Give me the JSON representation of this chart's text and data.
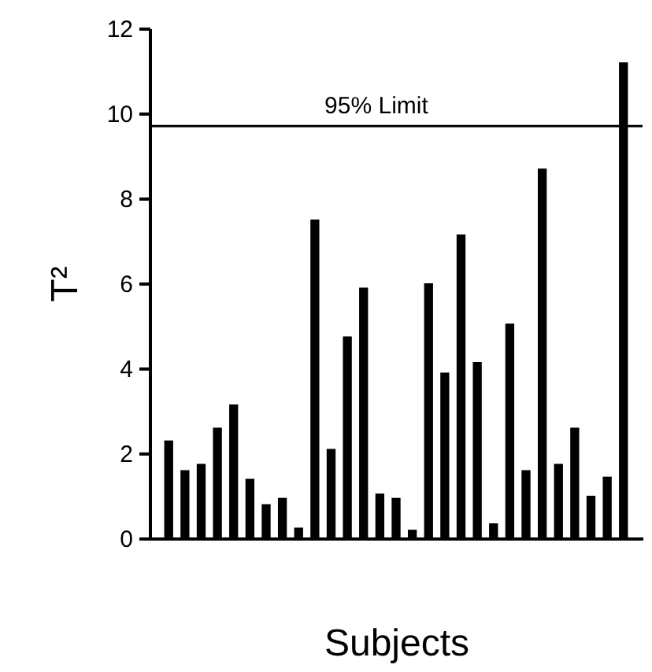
{
  "chart_data": {
    "type": "bar",
    "xlabel": "Subjects",
    "ylabel": "T²",
    "categories": [
      null,
      null,
      null,
      null,
      null,
      null,
      null,
      null,
      null,
      null,
      null,
      null,
      null,
      null,
      null,
      null,
      null,
      null,
      null,
      null,
      null,
      null,
      null,
      null,
      null,
      null,
      null,
      null,
      null
    ],
    "values": [
      2.3,
      1.6,
      1.75,
      2.6,
      3.15,
      1.4,
      0.8,
      0.95,
      0.25,
      7.5,
      2.1,
      4.75,
      5.9,
      1.05,
      0.95,
      0.2,
      6.0,
      3.9,
      7.15,
      4.15,
      0.35,
      5.05,
      1.6,
      8.7,
      1.75,
      2.6,
      1.0,
      1.45,
      11.2
    ],
    "color": "#000000",
    "ylim": [
      0,
      12
    ],
    "yticks": [
      0,
      2,
      4,
      6,
      8,
      10,
      12
    ],
    "ref_lines": [
      {
        "axis": "y",
        "value": 9.7,
        "label": "95% Limit",
        "color": "#000000"
      }
    ]
  }
}
